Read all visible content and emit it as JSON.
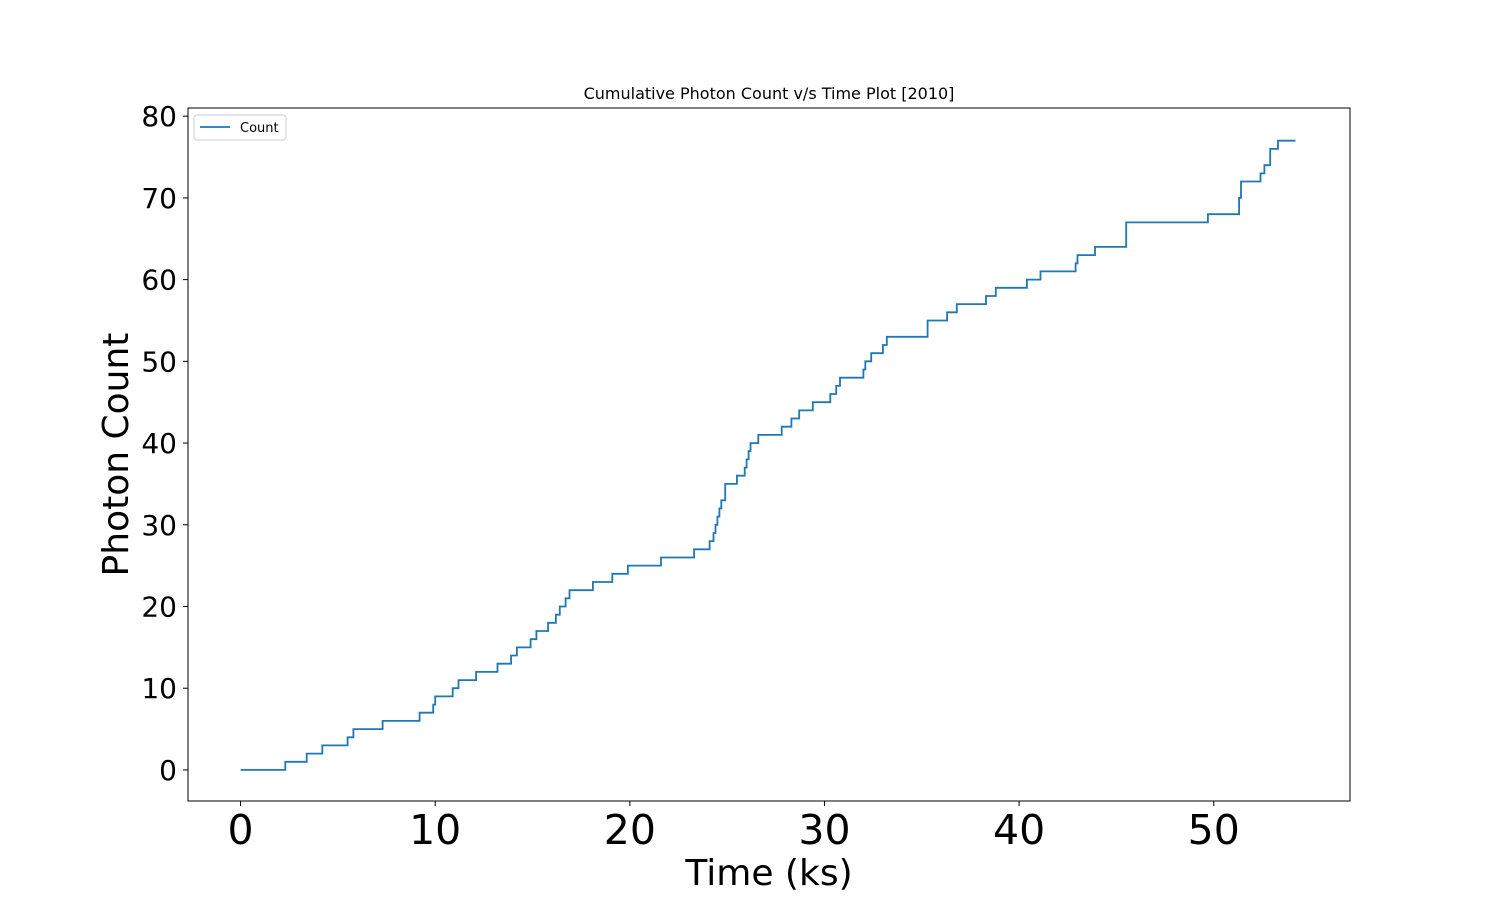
{
  "chart_data": {
    "type": "line",
    "title": "Cumulative Photon Count v/s Time Plot [2010]",
    "xlabel": "Time (ks)",
    "ylabel": "Photon Count",
    "xlim": [
      -2.7,
      57
    ],
    "ylim": [
      -3.8,
      81
    ],
    "xticks": [
      0,
      10,
      20,
      30,
      40,
      50
    ],
    "yticks": [
      0,
      10,
      20,
      30,
      40,
      50,
      60,
      70,
      80
    ],
    "grid": false,
    "legend_position": "upper left",
    "series": [
      {
        "name": "Count",
        "color": "#1f77b4",
        "step": "post",
        "x": [
          0.0,
          2.3,
          3.4,
          4.2,
          5.5,
          5.8,
          7.3,
          9.2,
          9.9,
          10.0,
          10.9,
          11.2,
          12.1,
          13.2,
          13.9,
          14.2,
          14.9,
          15.2,
          15.8,
          16.2,
          16.4,
          16.7,
          16.9,
          18.1,
          19.1,
          19.9,
          21.6,
          23.3,
          24.1,
          24.3,
          24.4,
          24.5,
          24.6,
          24.7,
          24.9,
          25.5,
          25.9,
          26.0,
          26.1,
          26.2,
          26.6,
          27.8,
          28.3,
          28.7,
          29.4,
          30.3,
          30.6,
          30.8,
          32.0,
          32.1,
          32.4,
          33.0,
          33.2,
          35.3,
          36.3,
          36.8,
          38.3,
          38.8,
          40.4,
          41.1,
          42.9,
          43.0,
          43.9,
          45.5,
          49.7,
          51.3,
          51.4,
          52.4,
          52.6,
          52.9,
          53.3,
          54.2
        ],
        "values": [
          0,
          1,
          2,
          3,
          4,
          5,
          6,
          7,
          8,
          9,
          10,
          11,
          12,
          13,
          14,
          15,
          16,
          17,
          18,
          19,
          20,
          21,
          22,
          23,
          24,
          25,
          26,
          27,
          28,
          29,
          30,
          31,
          32,
          33,
          35,
          36,
          37,
          38,
          39,
          40,
          41,
          42,
          43,
          44,
          45,
          46,
          47,
          48,
          49,
          50,
          51,
          52,
          53,
          55,
          56,
          57,
          58,
          59,
          60,
          61,
          62,
          63,
          64,
          67,
          68,
          70,
          72,
          73,
          74,
          76,
          77,
          77
        ]
      }
    ]
  }
}
